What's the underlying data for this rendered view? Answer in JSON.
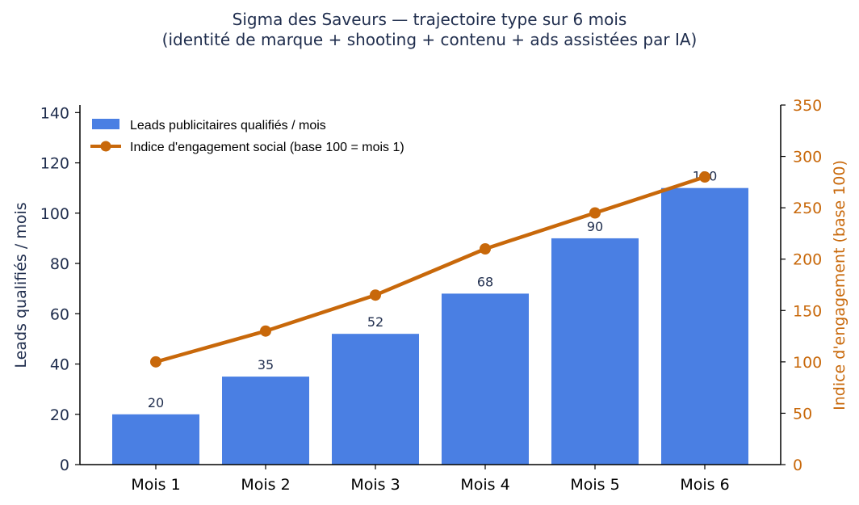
{
  "chart_data": {
    "type": "bar",
    "title": "Sigma des Saveurs — trajectoire type sur 6 mois",
    "subtitle": "(identité de marque + shooting + contenu + ads assistées par IA)",
    "categories": [
      "Mois 1",
      "Mois 2",
      "Mois 3",
      "Mois 4",
      "Mois 5",
      "Mois 6"
    ],
    "series": [
      {
        "name": "Leads publicitaires qualifiés / mois",
        "type": "bar",
        "axis": "left",
        "color": "#4a7fe3",
        "values": [
          20,
          35,
          52,
          68,
          90,
          110
        ],
        "data_labels": [
          "20",
          "35",
          "52",
          "68",
          "90",
          "110"
        ]
      },
      {
        "name": "Indice d'engagement social (base 100 = mois 1)",
        "type": "line",
        "axis": "right",
        "color": "#c8680a",
        "values": [
          100,
          130,
          165,
          210,
          245,
          280
        ]
      }
    ],
    "ylabel": "Leads qualifiés / mois",
    "ylim": [
      0,
      143
    ],
    "yticks": [
      "0",
      "20",
      "40",
      "60",
      "80",
      "100",
      "120",
      "140"
    ],
    "ylabel_right": "Indice d'engagement (base 100)",
    "ylim_right": [
      0,
      350
    ],
    "yticks_right": [
      "0",
      "50",
      "100",
      "150",
      "200",
      "250",
      "300",
      "350"
    ],
    "legend_position": "top-left",
    "grid": false
  }
}
